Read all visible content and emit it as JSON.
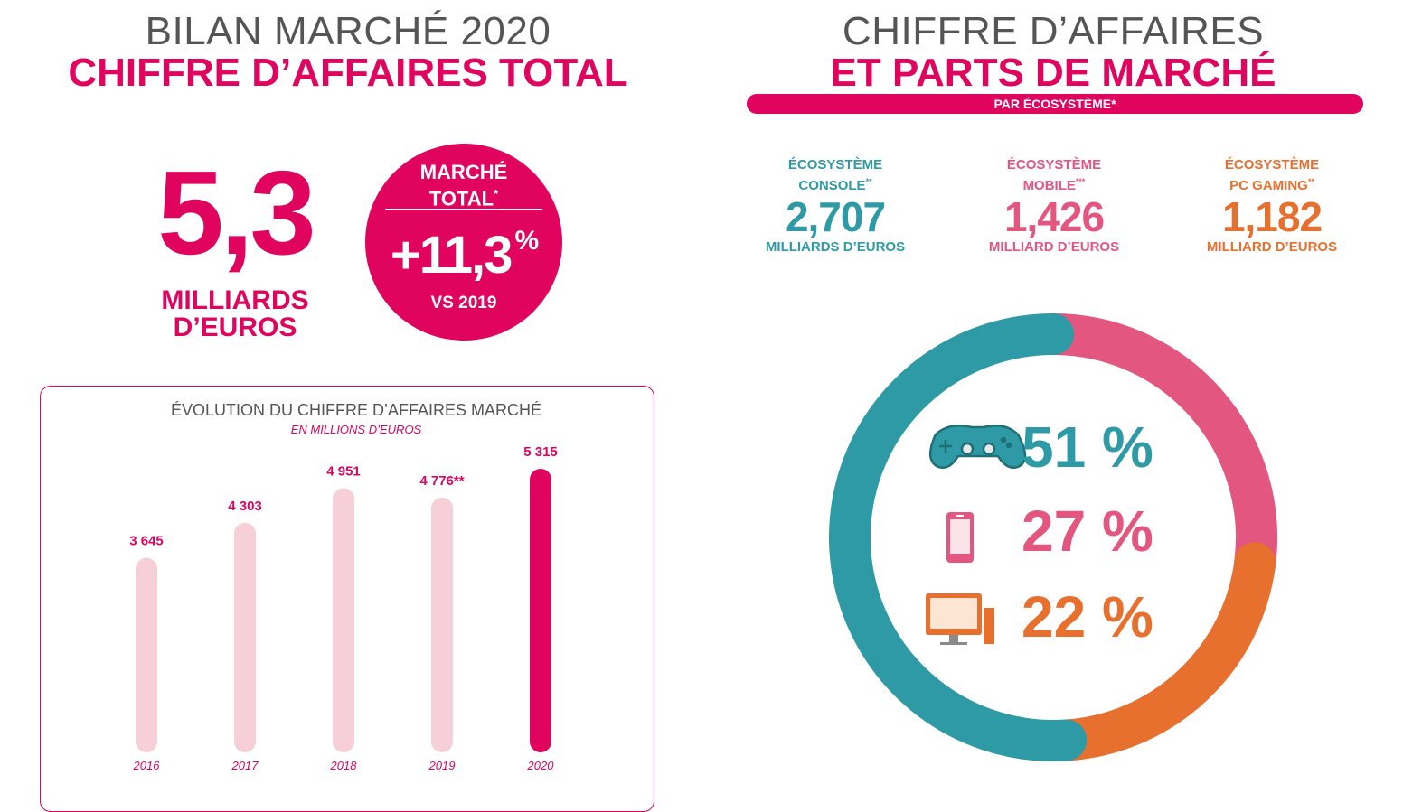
{
  "left": {
    "subtitle": "BILAN MARCHÉ 2020",
    "title": "CHIFFRE D’AFFAIRES TOTAL",
    "big_value": "5,3",
    "big_unit_line1": "MILLIARDS",
    "big_unit_line2": "D’EUROS",
    "circle": {
      "label_line1": "MARCHÉ",
      "label_line2": "TOTAL",
      "label_mark": "*",
      "value": "+11,3",
      "percent": "%",
      "vs": "VS 2019"
    }
  },
  "right": {
    "subtitle": "CHIFFRE D’AFFAIRES",
    "title": "ET PARTS DE MARCHÉ",
    "pill": "PAR ÉCOSYSTÈME*",
    "ecosystems": [
      {
        "label1": "ÉCOSYSTÈME",
        "label2": "CONSOLE",
        "mark": "**",
        "value": "2,707",
        "unit": "MILLIARDS D’EUROS",
        "color": "#2e9aa6",
        "percent": "51 %",
        "icon": "gamepad-icon"
      },
      {
        "label1": "ÉCOSYSTÈME",
        "label2": "MOBILE",
        "mark": "***",
        "value": "1,426",
        "unit": "MILLIARD D’EUROS",
        "color": "#e2567f",
        "percent": "27 %",
        "icon": "smartphone-icon"
      },
      {
        "label1": "ÉCOSYSTÈME",
        "label2": "PC GAMING",
        "mark": "**",
        "value": "1,182",
        "unit": "MILLIARD D’EUROS",
        "color": "#e8702e",
        "percent": "22 %",
        "icon": "desktop-computer-icon"
      }
    ]
  },
  "chart_data": [
    {
      "type": "bar",
      "title": "ÉVOLUTION DU CHIFFRE D’AFFAIRES MARCHÉ",
      "subtitle": "EN MILLIONS D’EUROS",
      "categories": [
        "2016",
        "2017",
        "2018",
        "2019",
        "2020"
      ],
      "values": [
        3645,
        4303,
        4951,
        4776,
        5315
      ],
      "value_labels": [
        "3 645",
        "4 303",
        "4 951",
        "4 776**",
        "5 315"
      ],
      "highlight_index": 4,
      "colors": {
        "normal": "#f6cfd8",
        "highlight": "#e0045e",
        "label": "#e0045e"
      }
    },
    {
      "type": "pie",
      "style": "donut",
      "labels": [
        "CONSOLE",
        "MOBILE",
        "PC GAMING"
      ],
      "values": [
        51,
        27,
        22
      ],
      "colors": [
        "#2e9aa6",
        "#e2567f",
        "#e8702e"
      ]
    }
  ]
}
